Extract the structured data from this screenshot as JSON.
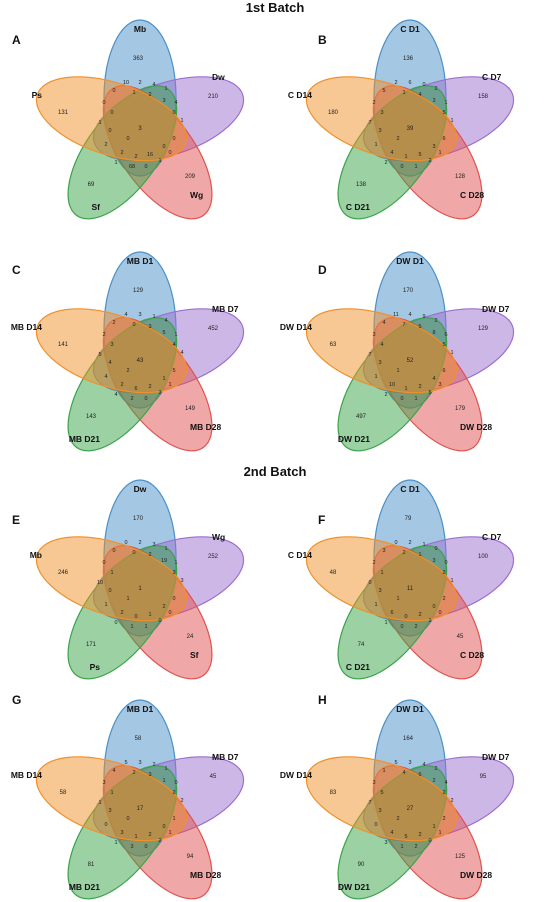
{
  "titles": {
    "batch1": "1st Batch",
    "batch2": "2nd  Batch"
  },
  "colors": {
    "blue": "#4a90c8",
    "purple": "#9b6fcf",
    "red": "#e0524f",
    "green": "#3aa34a",
    "orange": "#f0902a"
  },
  "panels": [
    {
      "letter": "A",
      "sets": {
        "top": "Mb",
        "right": "Dw",
        "bottom_right": "Wg",
        "bottom_left": "Sf",
        "left": "Ps"
      },
      "unique": {
        "top": "363",
        "right": "210",
        "bottom_right": "209",
        "bottom_left": "69",
        "left": "131"
      },
      "center": "3",
      "others": [
        "10",
        "2",
        "4",
        "1",
        "0",
        "1",
        "2",
        "3",
        "4",
        "0",
        "0",
        "0",
        "1",
        "1",
        "0",
        "2",
        "2",
        "16",
        "0",
        "0",
        "2",
        "1",
        "68",
        "0",
        "1",
        "0",
        "0"
      ]
    },
    {
      "letter": "B",
      "sets": {
        "top": "C D1",
        "right": "C D7",
        "bottom_right": "C D28",
        "bottom_left": "C D21",
        "left": "C D14"
      },
      "unique": {
        "top": "136",
        "right": "158",
        "bottom_right": "128",
        "bottom_left": "138",
        "left": "180"
      },
      "center": "39",
      "others": [
        "2",
        "6",
        "0",
        "2",
        "5",
        "1",
        "4",
        "3",
        "1",
        "2",
        "3",
        "5",
        "1",
        "7",
        "3",
        "4",
        "1",
        "5",
        "3",
        "6",
        "1",
        "2",
        "0",
        "1",
        "2",
        "1",
        "2"
      ]
    },
    {
      "letter": "C",
      "sets": {
        "top": "MB D1",
        "right": "MB D7",
        "bottom_right": "MB D28",
        "bottom_left": "MB D21",
        "left": "MB D14"
      },
      "unique": {
        "top": "129",
        "right": "452",
        "bottom_right": "149",
        "bottom_left": "143",
        "left": "141"
      },
      "center": "43",
      "others": [
        "4",
        "3",
        "1",
        "4",
        "2",
        "0",
        "3",
        "5",
        "1",
        "2",
        "3",
        "4",
        "4",
        "5",
        "4",
        "2",
        "6",
        "2",
        "1",
        "5",
        "4",
        "4",
        "2",
        "0",
        "3",
        "1",
        "2"
      ]
    },
    {
      "letter": "D",
      "sets": {
        "top": "DW D1",
        "right": "DW D7",
        "bottom_right": "DW D28",
        "bottom_left": "DW D21",
        "left": "DW D14"
      },
      "unique": {
        "top": "170",
        "right": "129",
        "bottom_right": "179",
        "bottom_left": "497",
        "left": "63"
      },
      "center": "52",
      "others": [
        "11",
        "4",
        "9",
        "2",
        "4",
        "7",
        "5",
        "8",
        "6",
        "3",
        "4",
        "5",
        "1",
        "7",
        "3",
        "10",
        "1",
        "2",
        "4",
        "6",
        "1",
        "2",
        "0",
        "1",
        "5",
        "3",
        "1"
      ]
    },
    {
      "letter": "E",
      "sets": {
        "top": "Dw",
        "right": "Wg",
        "bottom_right": "Sf",
        "bottom_left": "Ps",
        "left": "Mb"
      },
      "unique": {
        "top": "170",
        "right": "252",
        "bottom_right": "24",
        "bottom_left": "171",
        "left": "246"
      },
      "center": "1",
      "others": [
        "0",
        "2",
        "3",
        "1",
        "0",
        "0",
        "2",
        "19",
        "1",
        "0",
        "1",
        "3",
        "3",
        "10",
        "0",
        "2",
        "0",
        "1",
        "2",
        "0",
        "1",
        "0",
        "1",
        "1",
        "0",
        "0",
        "1"
      ]
    },
    {
      "letter": "F",
      "sets": {
        "top": "C D1",
        "right": "C D7",
        "bottom_right": "C D28",
        "bottom_left": "C D21",
        "left": "C D14"
      },
      "unique": {
        "top": "79",
        "right": "100",
        "bottom_right": "45",
        "bottom_left": "74",
        "left": "48"
      },
      "center": "11",
      "others": [
        "0",
        "2",
        "1",
        "0",
        "3",
        "2",
        "1",
        "3",
        "0",
        "2",
        "1",
        "2",
        "1",
        "0",
        "3",
        "6",
        "0",
        "2",
        "0",
        "2",
        "1",
        "1",
        "0",
        "2",
        "1",
        "0",
        "1"
      ]
    },
    {
      "letter": "G",
      "sets": {
        "top": "MB D1",
        "right": "MB D7",
        "bottom_right": "MB D28",
        "bottom_left": "MB D21",
        "left": "MB D14"
      },
      "unique": {
        "top": "58",
        "right": "45",
        "bottom_right": "94",
        "bottom_left": "81",
        "left": "58"
      },
      "center": "17",
      "others": [
        "5",
        "3",
        "2",
        "1",
        "4",
        "2",
        "3",
        "1",
        "0",
        "3",
        "1",
        "2",
        "2",
        "1",
        "3",
        "3",
        "1",
        "2",
        "0",
        "1",
        "0",
        "1",
        "3",
        "0",
        "2",
        "1",
        "0"
      ]
    },
    {
      "letter": "H",
      "sets": {
        "top": "DW D1",
        "right": "DW D7",
        "bottom_right": "DW D28",
        "bottom_left": "DW D21",
        "left": "DW D14"
      },
      "unique": {
        "top": "164",
        "right": "95",
        "bottom_right": "125",
        "bottom_left": "90",
        "left": "83"
      },
      "center": "27",
      "others": [
        "5",
        "3",
        "4",
        "2",
        "1",
        "4",
        "6",
        "2",
        "4",
        "3",
        "5",
        "2",
        "2",
        "7",
        "3",
        "4",
        "5",
        "2",
        "1",
        "2",
        "0",
        "3",
        "1",
        "2",
        "0",
        "1",
        "2"
      ]
    }
  ]
}
